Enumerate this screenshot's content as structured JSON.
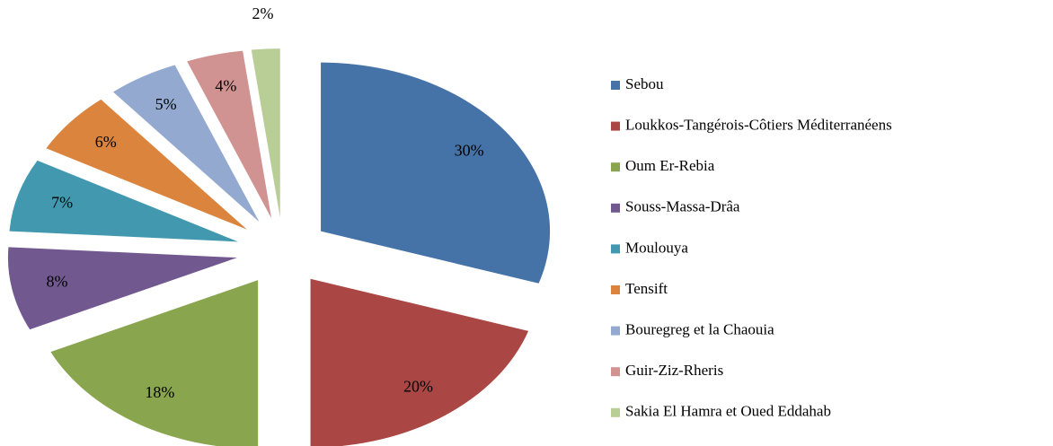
{
  "chart_data": {
    "type": "pie",
    "categories": [
      "Sebou",
      "Loukkos-Tangérois-Côtiers Méditerranéens",
      "Oum Er-Rebia",
      "Souss-Massa-Drâa",
      "Moulouya",
      "Tensift",
      "Bouregreg et la Chaouia",
      "Guir-Ziz-Rheris",
      "Sakia El Hamra et Oued Eddahab"
    ],
    "values": [
      30,
      20,
      18,
      8,
      7,
      6,
      5,
      4,
      2
    ],
    "value_labels": [
      "30%",
      "20%",
      "18%",
      "8%",
      "7%",
      "6%",
      "5%",
      "4%",
      "2%"
    ],
    "colors": [
      "#4572a7",
      "#aa4643",
      "#89a54e",
      "#71588f",
      "#4198af",
      "#db843d",
      "#93a9cf",
      "#d19392",
      "#b9cd96"
    ],
    "legend": "right",
    "exploded": true
  }
}
